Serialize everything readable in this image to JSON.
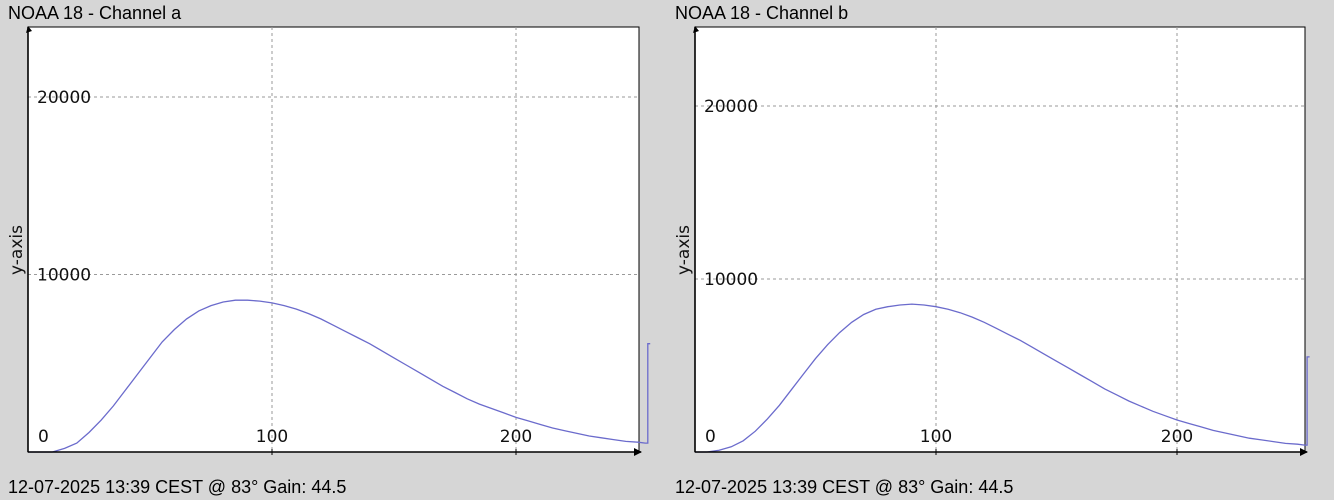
{
  "colors": {
    "background": "#d6d6d6",
    "plot": "#ffffff",
    "series": "#6b6bcc",
    "grid": "#9a9a9a",
    "axis": "#000000"
  },
  "chart_data": [
    {
      "type": "line",
      "title": "NOAA 18 - Channel a",
      "footer": "12-07-2025 13:39 CEST @ 83° Gain: 44.5",
      "xlabel": "",
      "ylabel": "y-axis",
      "xlim": [
        0,
        255
      ],
      "ylim": [
        0,
        24000
      ],
      "xticks": [
        "0",
        "100",
        "200"
      ],
      "yticks": [
        "0",
        "10000",
        "20000"
      ],
      "grid": true,
      "series": [
        {
          "x": [
            0,
            5,
            10,
            15,
            20,
            25,
            30,
            35,
            40,
            45,
            50,
            55,
            60,
            65,
            70,
            75,
            80,
            85,
            90,
            95,
            100,
            105,
            110,
            115,
            120,
            125,
            130,
            135,
            140,
            145,
            150,
            155,
            160,
            165,
            170,
            175,
            180,
            185,
            190,
            195,
            200,
            205,
            210,
            215,
            220,
            225,
            230,
            235,
            240,
            245,
            250,
            253,
            254,
            254,
            255
          ],
          "y": [
            0,
            0,
            0,
            200,
            500,
            1100,
            1800,
            2600,
            3500,
            4400,
            5300,
            6200,
            6900,
            7500,
            7950,
            8250,
            8450,
            8550,
            8550,
            8500,
            8400,
            8250,
            8050,
            7800,
            7500,
            7150,
            6800,
            6450,
            6100,
            5700,
            5300,
            4900,
            4500,
            4100,
            3700,
            3350,
            3000,
            2700,
            2450,
            2200,
            1950,
            1750,
            1550,
            1350,
            1200,
            1050,
            900,
            800,
            700,
            600,
            550,
            500,
            500,
            6100,
            6100
          ]
        }
      ]
    },
    {
      "type": "line",
      "title": "NOAA 18 - Channel b",
      "footer": "12-07-2025 13:39 CEST @ 83° Gain: 44.5",
      "xlabel": "",
      "ylabel": "y-axis",
      "xlim": [
        0,
        255
      ],
      "ylim": [
        0,
        24000
      ],
      "xticks": [
        "0",
        "100",
        "200"
      ],
      "yticks": [
        "0",
        "10000",
        "20000"
      ],
      "grid": true,
      "series": [
        {
          "x": [
            0,
            5,
            10,
            15,
            20,
            25,
            30,
            35,
            40,
            45,
            50,
            55,
            60,
            65,
            70,
            75,
            80,
            85,
            90,
            95,
            100,
            105,
            110,
            115,
            120,
            125,
            130,
            135,
            140,
            145,
            150,
            155,
            160,
            165,
            170,
            175,
            180,
            185,
            190,
            195,
            200,
            205,
            210,
            215,
            220,
            225,
            230,
            235,
            240,
            245,
            250,
            253,
            254,
            254,
            255
          ],
          "y": [
            0,
            0,
            100,
            300,
            650,
            1200,
            1900,
            2700,
            3600,
            4500,
            5400,
            6200,
            6900,
            7500,
            7950,
            8250,
            8400,
            8500,
            8550,
            8500,
            8400,
            8250,
            8050,
            7800,
            7500,
            7150,
            6800,
            6450,
            6050,
            5650,
            5250,
            4850,
            4450,
            4050,
            3650,
            3300,
            2950,
            2650,
            2350,
            2100,
            1850,
            1650,
            1450,
            1250,
            1100,
            950,
            800,
            700,
            600,
            500,
            450,
            400,
            400,
            5500,
            5500
          ]
        }
      ]
    }
  ]
}
